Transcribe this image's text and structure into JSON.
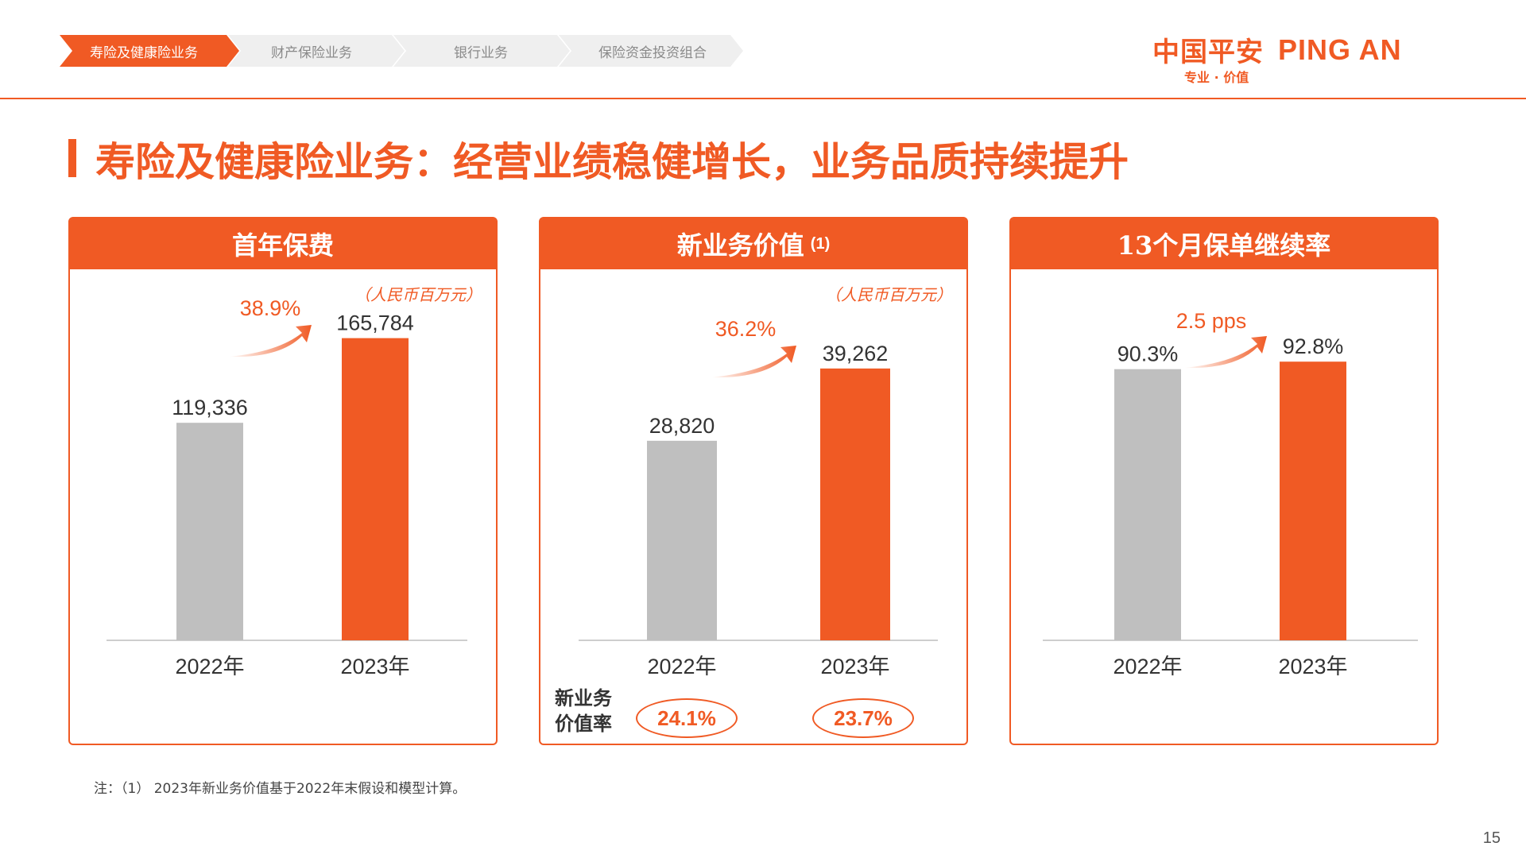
{
  "nav": {
    "tabs": [
      {
        "label": "寿险及健康险业务",
        "active": true
      },
      {
        "label": "财产保险业务",
        "active": false
      },
      {
        "label": "银行业务",
        "active": false
      },
      {
        "label": "保险资金投资组合",
        "active": false
      }
    ]
  },
  "logo": {
    "cn": "中国平安",
    "en": "PING AN",
    "tagline": "专业 · 价值"
  },
  "title": "寿险及健康险业务：经营业绩稳健增长，业务品质持续提升",
  "colors": {
    "accent": "#f05a24",
    "prior_bar": "#bfbfbf"
  },
  "panels": [
    {
      "heading": "首年保费",
      "footnote_ref": "",
      "unit": "（人民币百万元）"
    },
    {
      "heading": "新业务价值",
      "footnote_ref": "(1)",
      "unit": "（人民币百万元）",
      "ratio_label": "新业务价值率",
      "ratios": [
        "24.1%",
        "23.7%"
      ]
    },
    {
      "heading": "13个月保单继续率",
      "footnote_ref": "",
      "unit": ""
    }
  ],
  "chart_data": [
    {
      "type": "bar",
      "title": "首年保费",
      "categories": [
        "2022年",
        "2023年"
      ],
      "values": [
        119336,
        165784
      ],
      "value_labels": [
        "119,336",
        "165,784"
      ],
      "growth_label": "38.9%",
      "ylim": [
        0,
        180000
      ],
      "colors": [
        "#bfbfbf",
        "#f05a24"
      ]
    },
    {
      "type": "bar",
      "title": "新业务价值",
      "categories": [
        "2022年",
        "2023年"
      ],
      "values": [
        28820,
        39262
      ],
      "value_labels": [
        "28,820",
        "39,262"
      ],
      "growth_label": "36.2%",
      "ylim": [
        0,
        42800
      ],
      "colors": [
        "#bfbfbf",
        "#f05a24"
      ]
    },
    {
      "type": "bar",
      "title": "13个月保单继续率",
      "categories": [
        "2022年",
        "2023年"
      ],
      "values": [
        90.3,
        92.8
      ],
      "value_labels": [
        "90.3%",
        "92.8%"
      ],
      "growth_label": "2.5 pps",
      "ylim": [
        0,
        100
      ],
      "colors": [
        "#bfbfbf",
        "#f05a24"
      ]
    }
  ],
  "note": "注：（1） 2023年新业务价值基于2022年末假设和模型计算。",
  "page_number": "15"
}
